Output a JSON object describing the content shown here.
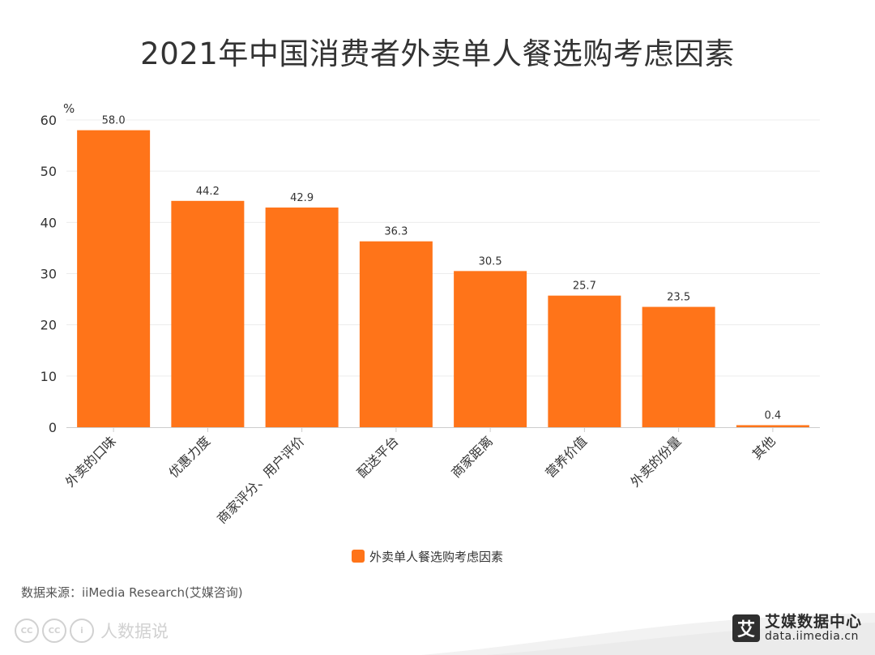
{
  "chart_data": {
    "type": "bar",
    "title": "2021年中国消费者外卖单人餐选购考虑因素",
    "unit_label": "%",
    "categories": [
      "外卖的口味",
      "优惠力度",
      "商家评分、用户评价",
      "配送平台",
      "商家距离",
      "营养价值",
      "外卖的份量",
      "其他"
    ],
    "series": [
      {
        "name": "外卖单人餐选购考虑因素",
        "values": [
          58.0,
          44.2,
          42.9,
          36.3,
          30.5,
          25.7,
          23.5,
          0.4
        ],
        "value_labels": [
          "58.0",
          "44.2",
          "42.9",
          "36.3",
          "30.5",
          "25.7",
          "23.5",
          "0.4"
        ]
      }
    ],
    "ylim": [
      0,
      60
    ],
    "yticks": [
      0,
      10,
      20,
      30,
      40,
      50,
      60
    ],
    "grid": true,
    "legend_position": "bottom-center",
    "bar_color": "#FF7419"
  },
  "source_text": "数据来源：iiMedia Research(艾媒咨询)",
  "watermark": {
    "badges": [
      "CC",
      "CC",
      "i"
    ],
    "text": "人数据说"
  },
  "brand": {
    "logo_char": "艾",
    "name": "艾媒数据中心",
    "url": "data.iimedia.cn"
  }
}
